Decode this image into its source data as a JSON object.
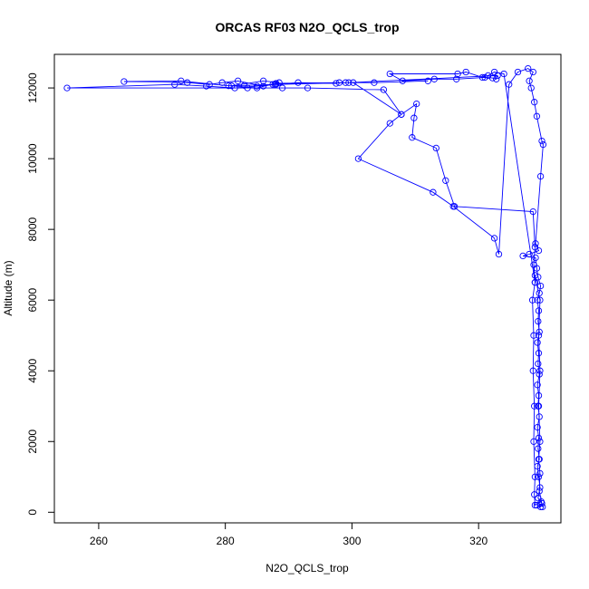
{
  "chart_data": {
    "type": "line",
    "title": "ORCAS RF03 N2O_QCLS_trop",
    "xlabel": "N2O_QCLS_trop",
    "ylabel": "Altitude (m)",
    "xlim": [
      253,
      333
    ],
    "ylim": [
      -300,
      12950
    ],
    "x_ticks": [
      260,
      280,
      300,
      320
    ],
    "y_ticks": [
      0,
      2000,
      4000,
      6000,
      8000,
      10000,
      12000
    ],
    "series_color": "#0000ff",
    "grid": false,
    "legend": "none",
    "series": [
      {
        "points": [
          [
            329.2,
            200
          ],
          [
            329.8,
            150
          ],
          [
            330.0,
            250
          ],
          [
            329.4,
            400
          ],
          [
            329.7,
            700
          ],
          [
            329.5,
            1000
          ],
          [
            329.3,
            1300
          ],
          [
            329.6,
            1500
          ],
          [
            329.4,
            1800
          ],
          [
            329.5,
            2100
          ],
          [
            329.3,
            2400
          ],
          [
            329.6,
            2700
          ],
          [
            329.4,
            3000
          ],
          [
            329.5,
            3300
          ],
          [
            329.3,
            3600
          ],
          [
            329.6,
            3900
          ],
          [
            329.4,
            4200
          ],
          [
            329.5,
            4500
          ],
          [
            329.3,
            4800
          ],
          [
            329.6,
            5100
          ],
          [
            329.4,
            5400
          ],
          [
            329.5,
            5700
          ],
          [
            329.3,
            6000
          ],
          [
            329.6,
            6200
          ],
          [
            329.8,
            6400
          ],
          [
            329.4,
            6650
          ],
          [
            329.2,
            6900
          ],
          [
            329.0,
            7200
          ],
          [
            327.0,
            7250
          ],
          [
            328.0,
            7300
          ],
          [
            329.5,
            7400
          ],
          [
            329.0,
            7600
          ],
          [
            329.8,
            9500
          ],
          [
            330.2,
            10400
          ],
          [
            330.0,
            10500
          ],
          [
            329.2,
            11200
          ],
          [
            328.8,
            11600
          ],
          [
            328.3,
            12000
          ],
          [
            328.0,
            12200
          ],
          [
            328.6,
            12450
          ],
          [
            327.8,
            12550
          ],
          [
            326.2,
            12450
          ],
          [
            324.8,
            12100
          ],
          [
            323.2,
            7300
          ],
          [
            322.5,
            7750
          ],
          [
            316.0,
            8650
          ],
          [
            312.8,
            9050
          ],
          [
            301.0,
            10000
          ],
          [
            306.0,
            11000
          ],
          [
            307.8,
            11250
          ],
          [
            310.2,
            11550
          ],
          [
            309.8,
            11150
          ],
          [
            309.5,
            10600
          ],
          [
            313.3,
            10300
          ],
          [
            314.8,
            9380
          ],
          [
            316.2,
            8650
          ],
          [
            328.6,
            8500
          ],
          [
            328.9,
            7500
          ],
          [
            328.7,
            7000
          ],
          [
            328.9,
            6500
          ],
          [
            328.5,
            6000
          ],
          [
            328.7,
            5000
          ],
          [
            328.6,
            4000
          ],
          [
            328.8,
            3000
          ],
          [
            328.7,
            2000
          ],
          [
            328.9,
            1000
          ],
          [
            328.8,
            500
          ],
          [
            328.9,
            200
          ],
          [
            329.9,
            300
          ],
          [
            330.1,
            150
          ],
          [
            329.6,
            600
          ],
          [
            329.7,
            1100
          ],
          [
            329.5,
            1500
          ],
          [
            329.7,
            2000
          ],
          [
            329.5,
            3000
          ],
          [
            329.7,
            4000
          ],
          [
            329.5,
            5000
          ],
          [
            329.7,
            6000
          ],
          [
            328.9,
            6700
          ],
          [
            328.9,
            6500
          ],
          [
            324.0,
            12400
          ],
          [
            322.5,
            12450
          ],
          [
            321.5,
            12350
          ],
          [
            320.6,
            12300
          ],
          [
            318.0,
            12450
          ],
          [
            316.7,
            12400
          ],
          [
            306.0,
            12400
          ],
          [
            308.0,
            12200
          ],
          [
            313.0,
            12250
          ],
          [
            316.5,
            12250
          ],
          [
            321.0,
            12300
          ],
          [
            322.2,
            12280
          ],
          [
            322.8,
            12250
          ],
          [
            323.0,
            12350
          ],
          [
            299.5,
            12150
          ],
          [
            288.0,
            12100
          ],
          [
            285.0,
            12050
          ],
          [
            281.5,
            12000
          ],
          [
            277.0,
            12050
          ],
          [
            272.0,
            12100
          ],
          [
            255.0,
            12000
          ],
          [
            283.5,
            12000
          ],
          [
            289.0,
            12000
          ],
          [
            293.0,
            12000
          ],
          [
            305.0,
            11950
          ],
          [
            307.8,
            11250
          ],
          [
            300.2,
            12150
          ],
          [
            298.0,
            12150
          ],
          [
            297.5,
            12130
          ],
          [
            291.5,
            12150
          ],
          [
            287.5,
            12100
          ],
          [
            286.0,
            12050
          ],
          [
            282.0,
            12200
          ],
          [
            279.5,
            12150
          ],
          [
            277.5,
            12100
          ],
          [
            274.0,
            12150
          ],
          [
            264.0,
            12180
          ],
          [
            273.0,
            12200
          ],
          [
            280.5,
            12060
          ],
          [
            283.0,
            12070
          ],
          [
            287.8,
            12100
          ],
          [
            288.5,
            12150
          ],
          [
            286.0,
            12200
          ],
          [
            281.0,
            12060
          ],
          [
            285.0,
            12000
          ],
          [
            288.0,
            12130
          ],
          [
            299.0,
            12150
          ],
          [
            303.5,
            12150
          ],
          [
            312.0,
            12200
          ]
        ]
      }
    ]
  }
}
